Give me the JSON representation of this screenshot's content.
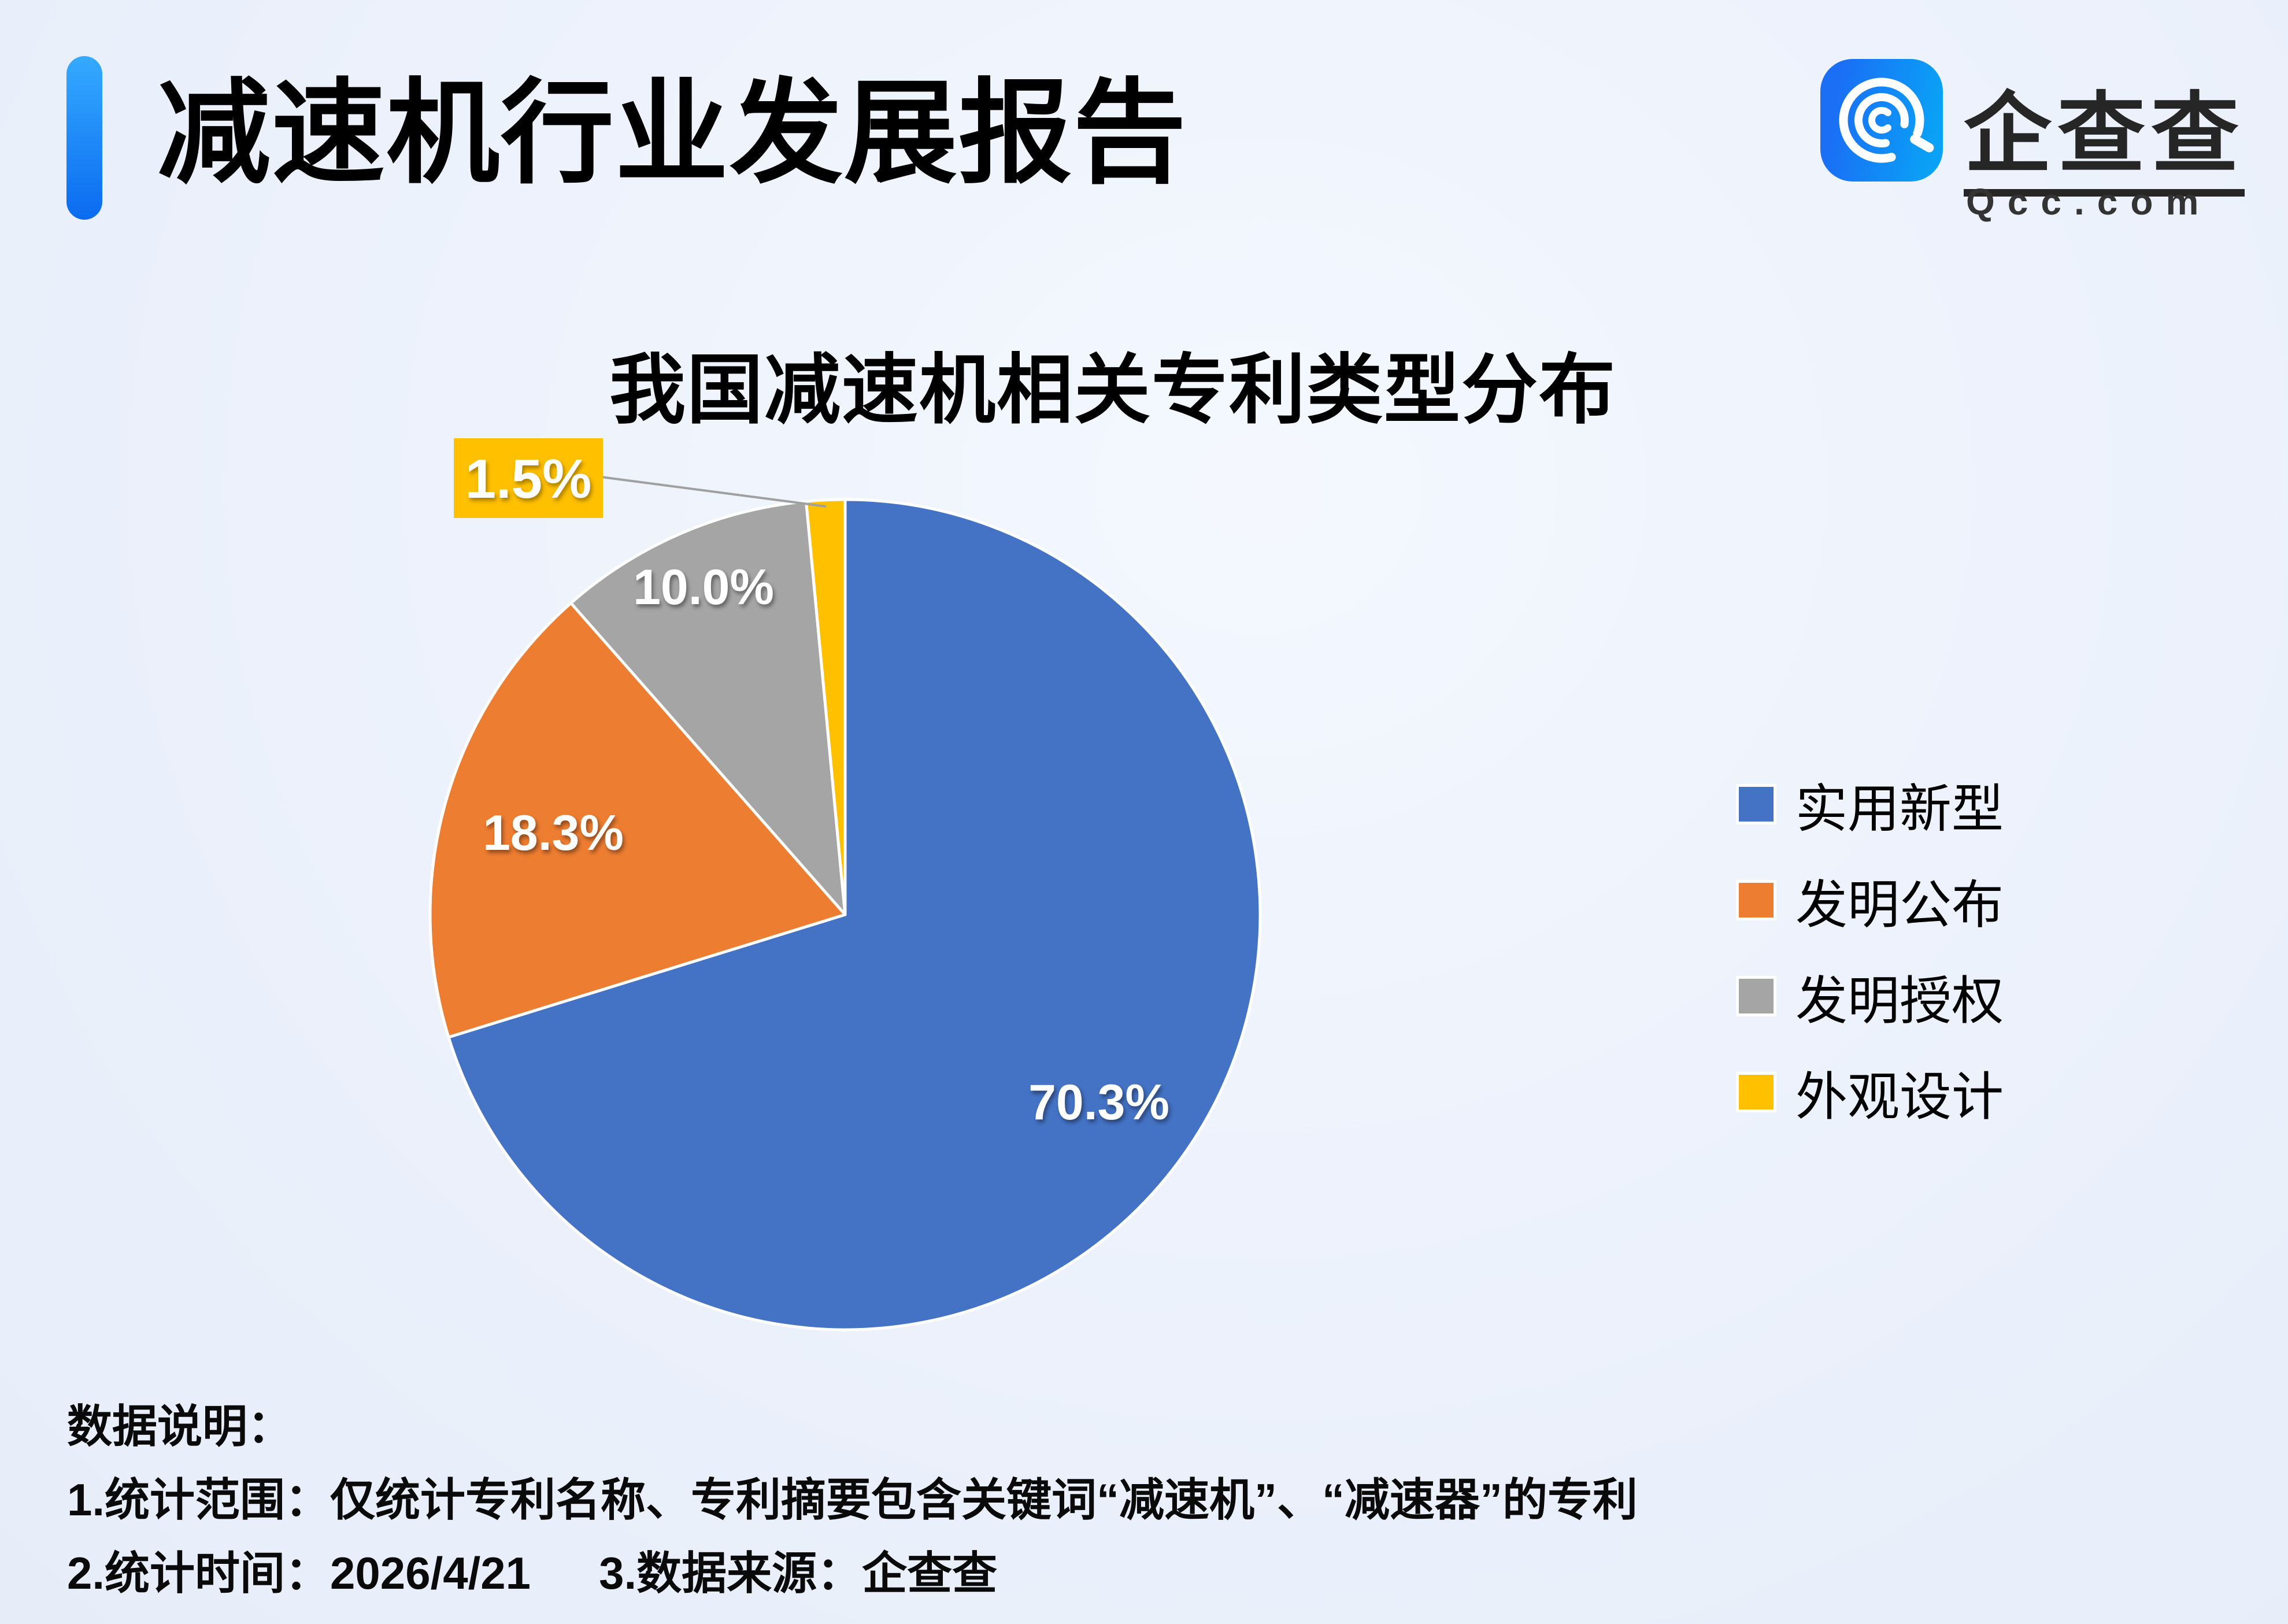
{
  "header": {
    "title": "减速机行业发展报告",
    "logo": {
      "name_cn_1": "企",
      "name_cn_2": "查",
      "name_cn_3": "查",
      "domain": "Qcc.com"
    }
  },
  "chart_data": {
    "type": "pie",
    "title": "我国减速机相关专利类型分布",
    "unit": "percent",
    "start_angle_deg": 0,
    "direction": "clockwise",
    "legend_position": "right",
    "slices": [
      {
        "label": "实用新型",
        "value": 70.3,
        "display": "70.3%",
        "color": "#4472C4",
        "label_pos": "inside",
        "label_r": 0.76
      },
      {
        "label": "发明公布",
        "value": 18.3,
        "display": "18.3%",
        "color": "#ED7D31",
        "label_pos": "inside",
        "label_r": 0.73
      },
      {
        "label": "发明授权",
        "value": 10.0,
        "display": "10.0%",
        "color": "#A5A5A5",
        "label_pos": "inside",
        "label_r": 0.86
      },
      {
        "label": "外观设计",
        "value": 1.5,
        "display": "1.5%",
        "color": "#FFC000",
        "label_pos": "callout"
      }
    ]
  },
  "notes": {
    "heading": "数据说明：",
    "line1": "1.统计范围：仅统计专利名称、专利摘要包含关键词“减速机”、“减速器”的专利",
    "line2_time": "2.统计时间：2026/4/21",
    "line2_source": "3.数据来源：企查查"
  },
  "colors": {
    "background": "#EDF2FC",
    "accent_bar_top": "#35AAFF",
    "accent_bar_bottom": "#0A6BF0",
    "logo_blue": "#1677F5",
    "slice_stroke": "#FFFFFF",
    "leader_line": "#A0A0A0",
    "callout_bg": "#FFC000",
    "callout_text": "#FFFFFF"
  }
}
